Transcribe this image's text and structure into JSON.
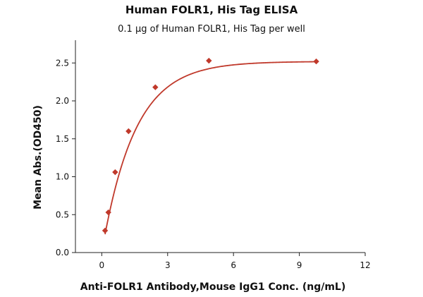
{
  "chart_data": {
    "type": "scatter",
    "title": "Human FOLR1, His Tag ELISA",
    "subtitle": "0.1 μg of Human FOLR1, His Tag per well",
    "xlabel": "Anti-FOLR1 Antibody,Mouse IgG1 Conc. (ng/mL)",
    "ylabel": "Mean Abs.(OD450)",
    "xlim": [
      -1.2,
      12
    ],
    "ylim": [
      0,
      2.8
    ],
    "xticks": [
      0,
      3,
      6,
      9,
      12
    ],
    "yticks": [
      0.0,
      0.5,
      1.0,
      1.5,
      2.0,
      2.5
    ],
    "xtick_labels": [
      "0",
      "3",
      "6",
      "9",
      "12"
    ],
    "ytick_labels": [
      "0.0",
      "0.5",
      "1.0",
      "1.5",
      "2.0",
      "2.5"
    ],
    "grid": false,
    "series": [
      {
        "marker": "diamond",
        "color": "#c0392b",
        "x": [
          0.15,
          0.3,
          0.61,
          1.22,
          2.44,
          4.88,
          9.77
        ],
        "y": [
          0.29,
          0.53,
          1.06,
          1.6,
          2.18,
          2.53,
          2.52
        ]
      }
    ],
    "fit_curve": {
      "color": "#c0392b",
      "model": "exponential-saturation",
      "ymax": 2.52,
      "k": 0.67
    }
  }
}
